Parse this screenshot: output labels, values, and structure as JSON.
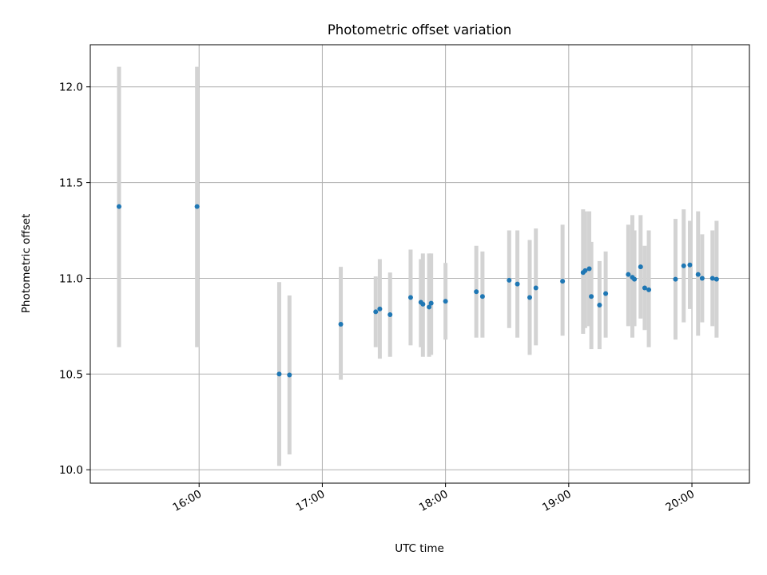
{
  "chart_data": {
    "type": "scatter",
    "title": "Photometric offset variation",
    "xlabel": "UTC time",
    "ylabel": "Photometric offset",
    "x_axis_kind": "time",
    "xlim": [
      "15:07",
      "20:28"
    ],
    "ylim": [
      9.93,
      12.22
    ],
    "xticks": [
      "16:00",
      "17:00",
      "18:00",
      "19:00",
      "20:00"
    ],
    "yticks": [
      "10.0",
      "10.5",
      "11.0",
      "11.5",
      "12.0"
    ],
    "grid": true,
    "marker_color": "#1f77b4",
    "errorbar_color": "#d3d3d3",
    "points": [
      {
        "x": "15:21",
        "y": 11.375,
        "ylo": 10.64,
        "yhi": 12.105
      },
      {
        "x": "15:59",
        "y": 11.375,
        "ylo": 10.64,
        "yhi": 12.105
      },
      {
        "x": "16:39",
        "y": 10.5,
        "ylo": 10.02,
        "yhi": 10.98
      },
      {
        "x": "16:44",
        "y": 10.495,
        "ylo": 10.08,
        "yhi": 10.91
      },
      {
        "x": "17:09",
        "y": 10.76,
        "ylo": 10.47,
        "yhi": 11.06
      },
      {
        "x": "17:26",
        "y": 10.825,
        "ylo": 10.64,
        "yhi": 11.01
      },
      {
        "x": "17:28",
        "y": 10.84,
        "ylo": 10.58,
        "yhi": 11.1
      },
      {
        "x": "17:33",
        "y": 10.81,
        "ylo": 10.59,
        "yhi": 11.03
      },
      {
        "x": "17:43",
        "y": 10.9,
        "ylo": 10.65,
        "yhi": 11.15
      },
      {
        "x": "17:48",
        "y": 10.875,
        "ylo": 10.64,
        "yhi": 11.1
      },
      {
        "x": "17:49",
        "y": 10.865,
        "ylo": 10.59,
        "yhi": 11.13
      },
      {
        "x": "17:52",
        "y": 10.85,
        "ylo": 10.59,
        "yhi": 11.13
      },
      {
        "x": "17:53",
        "y": 10.87,
        "ylo": 10.6,
        "yhi": 11.13
      },
      {
        "x": "18:00",
        "y": 10.88,
        "ylo": 10.68,
        "yhi": 11.08
      },
      {
        "x": "18:15",
        "y": 10.93,
        "ylo": 10.69,
        "yhi": 11.17
      },
      {
        "x": "18:18",
        "y": 10.905,
        "ylo": 10.69,
        "yhi": 11.14
      },
      {
        "x": "18:31",
        "y": 10.99,
        "ylo": 10.74,
        "yhi": 11.25
      },
      {
        "x": "18:35",
        "y": 10.97,
        "ylo": 10.69,
        "yhi": 11.25
      },
      {
        "x": "18:41",
        "y": 10.9,
        "ylo": 10.6,
        "yhi": 11.2
      },
      {
        "x": "18:44",
        "y": 10.95,
        "ylo": 10.65,
        "yhi": 11.26
      },
      {
        "x": "18:57",
        "y": 10.985,
        "ylo": 10.7,
        "yhi": 11.28
      },
      {
        "x": "19:07",
        "y": 11.03,
        "ylo": 10.71,
        "yhi": 11.36
      },
      {
        "x": "19:08",
        "y": 11.04,
        "ylo": 10.74,
        "yhi": 11.35
      },
      {
        "x": "19:10",
        "y": 11.05,
        "ylo": 10.75,
        "yhi": 11.35
      },
      {
        "x": "19:11",
        "y": 10.905,
        "ylo": 10.63,
        "yhi": 11.19
      },
      {
        "x": "19:15",
        "y": 10.86,
        "ylo": 10.63,
        "yhi": 11.09
      },
      {
        "x": "19:18",
        "y": 10.92,
        "ylo": 10.69,
        "yhi": 11.14
      },
      {
        "x": "19:29",
        "y": 11.02,
        "ylo": 10.75,
        "yhi": 11.28
      },
      {
        "x": "19:31",
        "y": 11.005,
        "ylo": 10.69,
        "yhi": 11.33
      },
      {
        "x": "19:32",
        "y": 10.995,
        "ylo": 10.75,
        "yhi": 11.25
      },
      {
        "x": "19:35",
        "y": 11.06,
        "ylo": 10.79,
        "yhi": 11.33
      },
      {
        "x": "19:37",
        "y": 10.95,
        "ylo": 10.73,
        "yhi": 11.17
      },
      {
        "x": "19:39",
        "y": 10.94,
        "ylo": 10.64,
        "yhi": 11.25
      },
      {
        "x": "19:52",
        "y": 10.995,
        "ylo": 10.68,
        "yhi": 11.31
      },
      {
        "x": "19:56",
        "y": 11.065,
        "ylo": 10.77,
        "yhi": 11.36
      },
      {
        "x": "19:59",
        "y": 11.07,
        "ylo": 10.84,
        "yhi": 11.3
      },
      {
        "x": "20:03",
        "y": 11.02,
        "ylo": 10.7,
        "yhi": 11.35
      },
      {
        "x": "20:05",
        "y": 11.0,
        "ylo": 10.77,
        "yhi": 11.23
      },
      {
        "x": "20:10",
        "y": 11.0,
        "ylo": 10.75,
        "yhi": 11.25
      },
      {
        "x": "20:12",
        "y": 10.995,
        "ylo": 10.69,
        "yhi": 11.3
      }
    ]
  }
}
